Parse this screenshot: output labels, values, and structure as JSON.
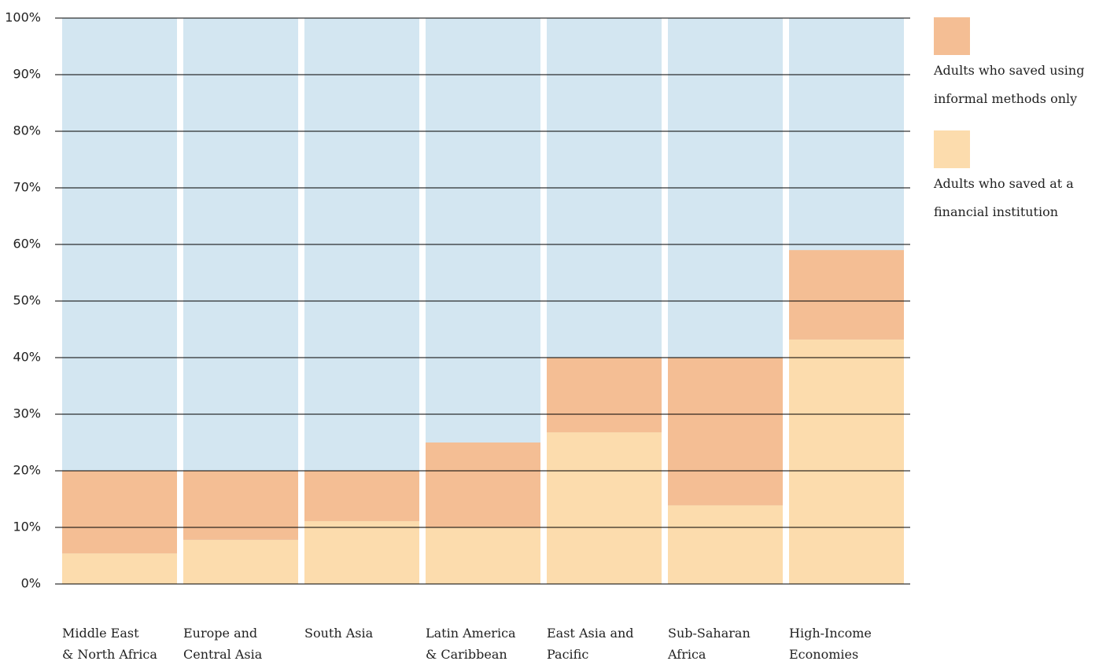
{
  "chart_data": {
    "type": "stacked_bar",
    "categories": [
      "Middle East\n& North Africa",
      "Europe and\nCentral Asia",
      "South Asia",
      "Latin America\n& Caribbean",
      "East Asia and\nPacific",
      "Sub-Saharan\nAfrica",
      "High-Income\nEconomies"
    ],
    "series": [
      {
        "name": "Adults who saved at a\nfinancial institution",
        "color": "#fcdcad",
        "values": [
          5.4,
          7.8,
          11.1,
          10,
          26.8,
          13.9,
          43.2
        ]
      },
      {
        "name": "Adults who saved using\ninformal methods only",
        "color": "#f4be94",
        "values": [
          14.6,
          12.2,
          8.9,
          15,
          13.2,
          26.1,
          15.8
        ]
      }
    ],
    "ylim": [
      0,
      100
    ],
    "yticks": [
      {
        "value": 0,
        "label": "0%"
      },
      {
        "value": 10,
        "label": "10%"
      },
      {
        "value": 20,
        "label": "20%"
      },
      {
        "value": 30,
        "label": "30%"
      },
      {
        "value": 40,
        "label": "40%"
      },
      {
        "value": 50,
        "label": "50%"
      },
      {
        "value": 60,
        "label": "60%"
      },
      {
        "value": 70,
        "label": "70%"
      },
      {
        "value": 80,
        "label": "80%"
      },
      {
        "value": 90,
        "label": "90%"
      },
      {
        "value": 100,
        "label": "100%"
      }
    ],
    "grid": true,
    "legend": "right"
  }
}
